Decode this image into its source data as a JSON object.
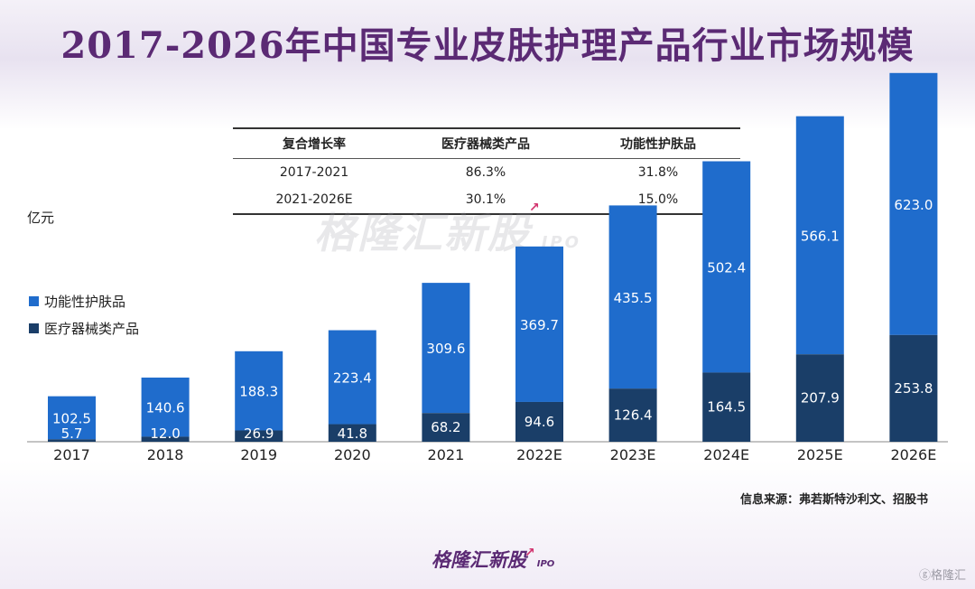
{
  "title": "2017-2026年中国专业皮肤护理产品行业市场规模",
  "unit_label": "亿元",
  "cagr_table": {
    "headers": [
      "复合增长率",
      "医疗器械类产品",
      "功能性护肤品"
    ],
    "rows": [
      [
        "2017-2021",
        "86.3%",
        "31.8%"
      ],
      [
        "2021-2026E",
        "30.1%",
        "15.0%"
      ]
    ]
  },
  "watermark": {
    "text": "格隆汇新股",
    "ipo": "IPO"
  },
  "source": "信息来源：弗若斯特沙利文、招股书",
  "bottom_logo": {
    "text": "格隆汇新股",
    "ipo": "IPO"
  },
  "corner_watermark": "ⓖ格隆汇",
  "colors": {
    "functional": "#1f6ccc",
    "medical": "#1a3e68",
    "title": "#5b2a74"
  },
  "chart_data": {
    "type": "bar",
    "stacked": true,
    "categories": [
      "2017",
      "2018",
      "2019",
      "2020",
      "2021",
      "2022E",
      "2023E",
      "2024E",
      "2025E",
      "2026E"
    ],
    "series": [
      {
        "name": "医疗器械类产品",
        "values": [
          5.7,
          12.0,
          26.9,
          41.8,
          68.2,
          94.6,
          126.4,
          164.5,
          207.9,
          253.8
        ]
      },
      {
        "name": "功能性护肤品",
        "values": [
          102.5,
          140.6,
          188.3,
          223.4,
          309.6,
          369.7,
          435.5,
          502.4,
          566.1,
          623.0
        ]
      }
    ],
    "ylabel": "亿元",
    "ylim": [
      0,
      900
    ],
    "legend_position": "left",
    "grid": false
  }
}
